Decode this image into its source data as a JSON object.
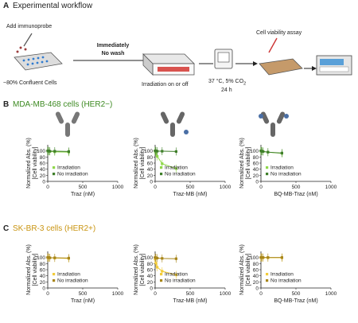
{
  "panelA": {
    "letter": "A",
    "title": "Experimental workflow",
    "add_probe": "Add immunoprobe",
    "confluent": "~80% Confluent Cells",
    "immediately": "Immediately",
    "no_wash": "No wash",
    "irradiation": "Irradiation on or off",
    "incubate_temp": "37 °C, 5% CO",
    "incubate_sub": "2",
    "incubate_time": "24 h",
    "viability": "Cell viability assay"
  },
  "panelB": {
    "letter": "B",
    "title": "MDA-MB-468 cells (HER2−)",
    "color": "#3d8a22"
  },
  "panelC": {
    "letter": "C",
    "title": "SK-BR-3 cells (HER2+)",
    "color": "#c99410"
  },
  "axes": {
    "ylabel1": "Normalized Abs. (%)",
    "ylabel2": "[Cell viability]",
    "yticks": [
      "0",
      "20",
      "40",
      "60",
      "80",
      "100"
    ],
    "xticks": [
      "0",
      "500",
      "1000"
    ]
  },
  "legend": {
    "irr": "Irradiation",
    "noirr": "No irradiation"
  },
  "colors": {
    "B_irr": "#8fd84a",
    "B_no": "#3f7f2a",
    "C_irr": "#f2cc3a",
    "C_no": "#a8861a"
  },
  "chart_data": [
    {
      "type": "scatter",
      "panel": "B",
      "xlabel": "Traz (nM)",
      "xlim": [
        0,
        1000
      ],
      "ylim": [
        0,
        120
      ],
      "series": [
        {
          "name": "Irradiation",
          "x": [
            0,
            10,
            30,
            100,
            300
          ],
          "y": [
            100,
            99,
            98,
            97,
            96
          ]
        },
        {
          "name": "No irradiation",
          "x": [
            0,
            10,
            30,
            100,
            300
          ],
          "y": [
            100,
            100,
            99,
            99,
            98
          ]
        }
      ]
    },
    {
      "type": "scatter",
      "panel": "B",
      "xlabel": "Traz-MB (nM)",
      "xlim": [
        0,
        1000
      ],
      "ylim": [
        0,
        120
      ],
      "series": [
        {
          "name": "Irradiation",
          "x": [
            0,
            10,
            30,
            100,
            300
          ],
          "y": [
            100,
            95,
            82,
            58,
            42
          ]
        },
        {
          "name": "No irradiation",
          "x": [
            0,
            10,
            30,
            100,
            300
          ],
          "y": [
            100,
            100,
            99,
            99,
            98
          ]
        }
      ]
    },
    {
      "type": "scatter",
      "panel": "B",
      "xlabel": "BQ-MB-Traz (nM)",
      "xlim": [
        0,
        1000
      ],
      "ylim": [
        0,
        120
      ],
      "series": [
        {
          "name": "Irradiation",
          "x": [
            0,
            10,
            30,
            100,
            300
          ],
          "y": [
            100,
            99,
            98,
            96,
            92
          ]
        },
        {
          "name": "No irradiation",
          "x": [
            0,
            10,
            30,
            100,
            300
          ],
          "y": [
            100,
            99,
            98,
            96,
            93
          ]
        }
      ]
    },
    {
      "type": "scatter",
      "panel": "C",
      "xlabel": "Traz (nM)",
      "xlim": [
        0,
        1000
      ],
      "ylim": [
        0,
        120
      ],
      "series": [
        {
          "name": "Irradiation",
          "x": [
            0,
            10,
            30,
            100,
            300
          ],
          "y": [
            100,
            99,
            99,
            98,
            97
          ]
        },
        {
          "name": "No irradiation",
          "x": [
            0,
            10,
            30,
            100,
            300
          ],
          "y": [
            100,
            100,
            99,
            99,
            98
          ]
        }
      ]
    },
    {
      "type": "scatter",
      "panel": "C",
      "xlabel": "Traz-MB (nM)",
      "xlim": [
        0,
        1000
      ],
      "ylim": [
        0,
        120
      ],
      "series": [
        {
          "name": "Irradiation",
          "x": [
            0,
            10,
            30,
            100,
            300
          ],
          "y": [
            95,
            82,
            68,
            55,
            43
          ]
        },
        {
          "name": "No irradiation",
          "x": [
            0,
            10,
            30,
            100,
            300
          ],
          "y": [
            100,
            99,
            98,
            97,
            96
          ]
        }
      ]
    },
    {
      "type": "scatter",
      "panel": "C",
      "xlabel": "BQ-MB-Traz (nM)",
      "xlim": [
        0,
        1000
      ],
      "ylim": [
        0,
        120
      ],
      "series": [
        {
          "name": "Irradiation",
          "x": [
            0,
            10,
            30,
            100,
            300
          ],
          "y": [
            100,
            100,
            99,
            99,
            99
          ]
        },
        {
          "name": "No irradiation",
          "x": [
            0,
            10,
            30,
            100,
            300
          ],
          "y": [
            100,
            100,
            100,
            100,
            100
          ]
        }
      ]
    }
  ]
}
